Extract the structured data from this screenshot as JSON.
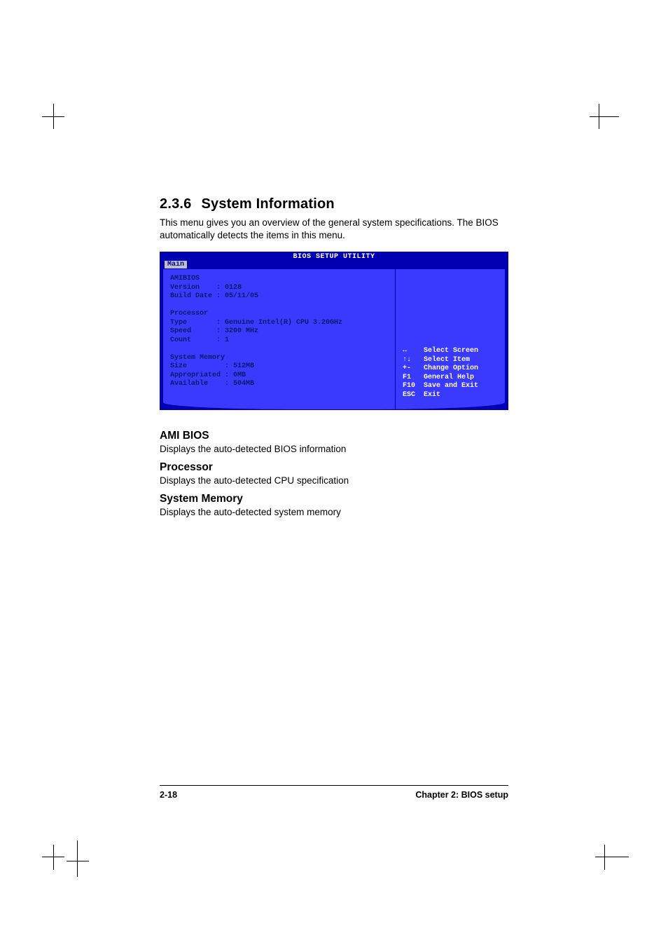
{
  "section": {
    "number": "2.3.6",
    "title": "System Information",
    "intro": "This menu gives you an overview of the general system specifications. The BIOS automatically detects the items in this menu."
  },
  "bios": {
    "title": "BIOS SETUP UTILITY",
    "tab": "Main",
    "colors": {
      "frame": "#0000b3",
      "panel": "#3a3aff",
      "text_dim": "#0a1a6a",
      "text_bright": "#ffffff",
      "tab_bg": "#c0c0c0"
    },
    "amibios": {
      "heading": "AMIBIOS",
      "version_label": "Version",
      "version_value": "0128",
      "build_label": "Build Date",
      "build_value": "05/11/05"
    },
    "processor": {
      "heading": "Processor",
      "type_label": "Type",
      "type_value": "Genuine Intel(R) CPU 3.20GHz",
      "speed_label": "Speed",
      "speed_value": "3200 MHz",
      "count_label": "Count",
      "count_value": "1"
    },
    "memory": {
      "heading": "System Memory",
      "size_label": "Size",
      "size_value": "512MB",
      "approp_label": "Appropriated",
      "approp_value": "0MB",
      "avail_label": "Available",
      "avail_value": "504MB"
    },
    "nav": [
      {
        "key": "↔",
        "action": "Select Screen"
      },
      {
        "key": "↑↓",
        "action": "Select Item"
      },
      {
        "key": "+-",
        "action": "Change Option"
      },
      {
        "key": "F1",
        "action": "General Help"
      },
      {
        "key": "F10",
        "action": "Save and Exit"
      },
      {
        "key": "ESC",
        "action": "Exit"
      }
    ]
  },
  "subsections": {
    "ami": {
      "title": "AMI BIOS",
      "text": "Displays the auto-detected BIOS information"
    },
    "proc": {
      "title": "Processor",
      "text": "Displays the auto-detected CPU specification"
    },
    "mem": {
      "title": "System Memory",
      "text": "Displays the auto-detected system memory"
    }
  },
  "footer": {
    "page": "2-18",
    "chapter": "Chapter 2: BIOS setup"
  }
}
